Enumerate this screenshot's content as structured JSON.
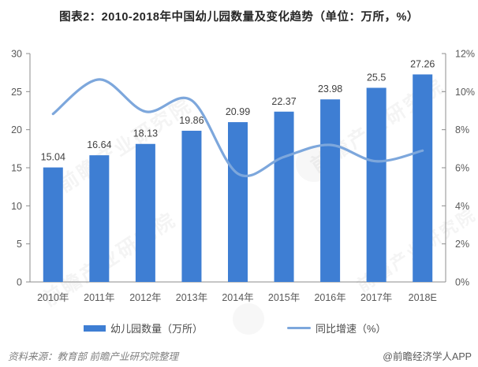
{
  "title": "图表2：2010-2018年中国幼儿园数量及变化趋势（单位：万所，%）",
  "watermark": {
    "text": "前瞻产业研究院"
  },
  "chart_data": {
    "type": "bar+line",
    "title": "图表2：2010-2018年中国幼儿园数量及变化趋势（单位：万所，%）",
    "categories": [
      "2010年",
      "2011年",
      "2012年",
      "2013年",
      "2014年",
      "2015年",
      "2016年",
      "2017年",
      "2018E"
    ],
    "series": [
      {
        "name": "幼儿园数量（万所）",
        "type": "bar",
        "axis": "left",
        "color": "#3e7ed3",
        "values": [
          15.04,
          16.64,
          18.13,
          19.86,
          20.99,
          22.37,
          23.98,
          25.5,
          27.26
        ],
        "labels": [
          "15.04",
          "16.64",
          "18.13",
          "19.86",
          "20.99",
          "22.37",
          "23.98",
          "25.5",
          "27.26"
        ]
      },
      {
        "name": "同比增速（%）",
        "type": "line",
        "axis": "right",
        "color": "#7da7dc",
        "values": [
          8.83,
          10.64,
          8.95,
          9.54,
          5.69,
          6.57,
          7.2,
          6.34,
          6.9
        ]
      }
    ],
    "left_axis": {
      "min": 0,
      "max": 30,
      "step": 5,
      "ticks": [
        "0",
        "5",
        "10",
        "15",
        "20",
        "25",
        "30"
      ]
    },
    "right_axis": {
      "min": 0,
      "max": 12,
      "step": 2,
      "ticks": [
        "0%",
        "2%",
        "4%",
        "6%",
        "8%",
        "10%",
        "12%"
      ]
    },
    "grid": false,
    "legend_position": "bottom"
  },
  "legend": [
    {
      "label": "幼儿园数量（万所）",
      "swatch": "bar"
    },
    {
      "label": "同比增速（%）",
      "swatch": "line"
    }
  ],
  "footer": {
    "source": "资料来源：教育部  前瞻产业研究院整理",
    "credit": "@前瞻经济学人APP"
  },
  "colors": {
    "bar": "#3e7ed3",
    "line": "#7da7dc",
    "axis": "#8c8c8c",
    "axis_label": "#595959",
    "value_label": "#404040"
  }
}
